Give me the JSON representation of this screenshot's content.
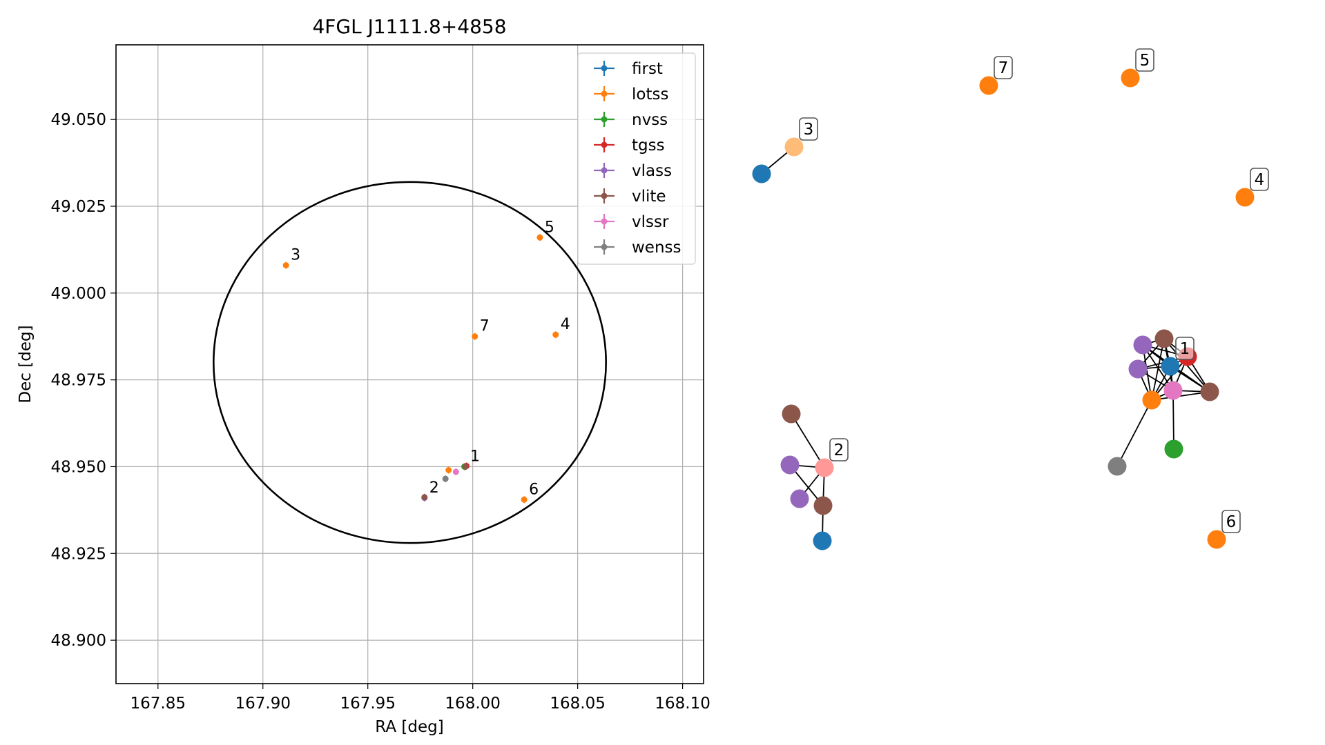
{
  "chart_data": [
    {
      "type": "scatter",
      "title": "4FGL J1111.8+4858",
      "xlabel": "RA [deg]",
      "ylabel": "Dec [deg]",
      "xlim": [
        167.83,
        168.11
      ],
      "ylim": [
        48.8875,
        49.0715
      ],
      "xticks": [
        {
          "value": 167.85,
          "label": "167.85"
        },
        {
          "value": 167.9,
          "label": "167.90"
        },
        {
          "value": 167.95,
          "label": "167.95"
        },
        {
          "value": 168.0,
          "label": "168.00"
        },
        {
          "value": 168.05,
          "label": "168.05"
        },
        {
          "value": 168.1,
          "label": "168.10"
        }
      ],
      "yticks": [
        {
          "value": 48.9,
          "label": "48.900"
        },
        {
          "value": 48.925,
          "label": "48.925"
        },
        {
          "value": 48.95,
          "label": "48.950"
        },
        {
          "value": 48.975,
          "label": "48.975"
        },
        {
          "value": 49.0,
          "label": "49.000"
        },
        {
          "value": 49.025,
          "label": "49.025"
        },
        {
          "value": 49.05,
          "label": "49.050"
        }
      ],
      "grid": true,
      "legend_position": "top-right",
      "ellipse": {
        "ra": 167.97,
        "dec": 48.98,
        "ra_semi_axis": 0.0935,
        "dec_semi_axis": 0.052,
        "color": "#000000"
      },
      "series": [
        {
          "name": "first",
          "color": "#1f77b4",
          "points": [
            {
              "ra": 167.9965,
              "dec": 48.95
            }
          ]
        },
        {
          "name": "lotss",
          "color": "#ff7f0e",
          "points": [
            {
              "ra": 167.9885,
              "dec": 48.949
            },
            {
              "ra": 167.911,
              "dec": 49.008
            },
            {
              "ra": 168.0395,
              "dec": 48.988
            },
            {
              "ra": 168.032,
              "dec": 49.016
            },
            {
              "ra": 168.0245,
              "dec": 48.9405
            },
            {
              "ra": 168.001,
              "dec": 48.9875
            }
          ]
        },
        {
          "name": "nvss",
          "color": "#2ca02c",
          "points": [
            {
              "ra": 167.996,
              "dec": 48.95
            }
          ]
        },
        {
          "name": "tgss",
          "color": "#d62728",
          "points": [
            {
              "ra": 167.997,
              "dec": 48.9502
            }
          ]
        },
        {
          "name": "vlass",
          "color": "#9467bd",
          "points": [
            {
              "ra": 167.977,
              "dec": 48.941
            }
          ]
        },
        {
          "name": "vlite",
          "color": "#8c564b",
          "points": [
            {
              "ra": 167.9965,
              "dec": 48.95
            },
            {
              "ra": 167.977,
              "dec": 48.9412
            }
          ]
        },
        {
          "name": "vlssr",
          "color": "#e377c2",
          "points": [
            {
              "ra": 167.992,
              "dec": 48.9485
            }
          ]
        },
        {
          "name": "wenss",
          "color": "#7f7f7f",
          "points": [
            {
              "ra": 167.987,
              "dec": 48.9465
            }
          ]
        }
      ],
      "annotations": [
        {
          "text": "1",
          "ra": 167.9965,
          "dec": 48.95
        },
        {
          "text": "2",
          "ra": 167.977,
          "dec": 48.941
        },
        {
          "text": "3",
          "ra": 167.911,
          "dec": 49.008
        },
        {
          "text": "4",
          "ra": 168.0395,
          "dec": 48.988
        },
        {
          "text": "5",
          "ra": 168.032,
          "dec": 49.016
        },
        {
          "text": "6",
          "ra": 168.0245,
          "dec": 48.9405
        },
        {
          "text": "7",
          "ra": 168.001,
          "dec": 48.9875
        }
      ]
    },
    {
      "type": "network",
      "nodes": [
        {
          "id": "n3f",
          "color": "#1f77b4"
        },
        {
          "id": "n3l",
          "color": "#ffbb78"
        },
        {
          "id": "n7",
          "color": "#ff7f0e"
        },
        {
          "id": "n5",
          "color": "#ff7f0e"
        },
        {
          "id": "n4",
          "color": "#ff7f0e"
        },
        {
          "id": "n6",
          "color": "#ff7f0e"
        },
        {
          "id": "g2_vlite1",
          "color": "#8c564b"
        },
        {
          "id": "g2_vlass1",
          "color": "#9467bd"
        },
        {
          "id": "g2_lotss",
          "color": "#ff9896"
        },
        {
          "id": "g2_vlass2",
          "color": "#9467bd"
        },
        {
          "id": "g2_vlite2",
          "color": "#8c564b"
        },
        {
          "id": "g2_first",
          "color": "#1f77b4"
        },
        {
          "id": "g1_vlite_top",
          "color": "#8c564b"
        },
        {
          "id": "g1_vlass_top",
          "color": "#9467bd"
        },
        {
          "id": "g1_tgss",
          "color": "#d62728"
        },
        {
          "id": "g1_vlass_left",
          "color": "#9467bd"
        },
        {
          "id": "g1_first",
          "color": "#1f77b4"
        },
        {
          "id": "g1_vlssr",
          "color": "#e377c2"
        },
        {
          "id": "g1_vlite_right",
          "color": "#8c564b"
        },
        {
          "id": "g1_lotss",
          "color": "#ff7f0e"
        },
        {
          "id": "g1_nvss",
          "color": "#2ca02c"
        },
        {
          "id": "g1_wenss",
          "color": "#7f7f7f"
        }
      ],
      "edges": [
        [
          "n3f",
          "n3l"
        ],
        [
          "g2_vlite1",
          "g2_lotss"
        ],
        [
          "g2_vlass1",
          "g2_lotss"
        ],
        [
          "g2_vlass1",
          "g2_vlite2"
        ],
        [
          "g2_vlass2",
          "g2_lotss"
        ],
        [
          "g2_lotss",
          "g2_vlite2"
        ],
        [
          "g2_vlite2",
          "g2_first"
        ],
        [
          "g1_vlite_top",
          "g1_vlass_top"
        ],
        [
          "g1_vlite_top",
          "g1_tgss"
        ],
        [
          "g1_vlite_top",
          "g1_vlass_left"
        ],
        [
          "g1_vlite_top",
          "g1_first"
        ],
        [
          "g1_vlite_top",
          "g1_vlssr"
        ],
        [
          "g1_vlite_top",
          "g1_lotss"
        ],
        [
          "g1_vlite_top",
          "g1_vlite_right"
        ],
        [
          "g1_vlass_top",
          "g1_tgss"
        ],
        [
          "g1_vlass_top",
          "g1_first"
        ],
        [
          "g1_vlass_top",
          "g1_vlssr"
        ],
        [
          "g1_vlass_top",
          "g1_lotss"
        ],
        [
          "g1_vlass_top",
          "g1_vlite_right"
        ],
        [
          "g1_tgss",
          "g1_vlass_left"
        ],
        [
          "g1_tgss",
          "g1_first"
        ],
        [
          "g1_tgss",
          "g1_vlssr"
        ],
        [
          "g1_tgss",
          "g1_lotss"
        ],
        [
          "g1_tgss",
          "g1_vlite_right"
        ],
        [
          "g1_vlass_left",
          "g1_first"
        ],
        [
          "g1_vlass_left",
          "g1_vlssr"
        ],
        [
          "g1_vlass_left",
          "g1_lotss"
        ],
        [
          "g1_first",
          "g1_vlssr"
        ],
        [
          "g1_first",
          "g1_lotss"
        ],
        [
          "g1_first",
          "g1_vlite_right"
        ],
        [
          "g1_vlssr",
          "g1_lotss"
        ],
        [
          "g1_vlssr",
          "g1_vlite_right"
        ],
        [
          "g1_lotss",
          "g1_vlite_right"
        ],
        [
          "g1_lotss",
          "g1_wenss"
        ],
        [
          "g1_vlssr",
          "g1_nvss"
        ]
      ],
      "labels": [
        {
          "text": "3",
          "node": "n3l"
        },
        {
          "text": "7",
          "node": "n7"
        },
        {
          "text": "5",
          "node": "n5"
        },
        {
          "text": "4",
          "node": "n4"
        },
        {
          "text": "6",
          "node": "n6"
        },
        {
          "text": "2",
          "node": "g2_lotss"
        },
        {
          "text": "1",
          "node": "g1_first"
        }
      ]
    }
  ]
}
